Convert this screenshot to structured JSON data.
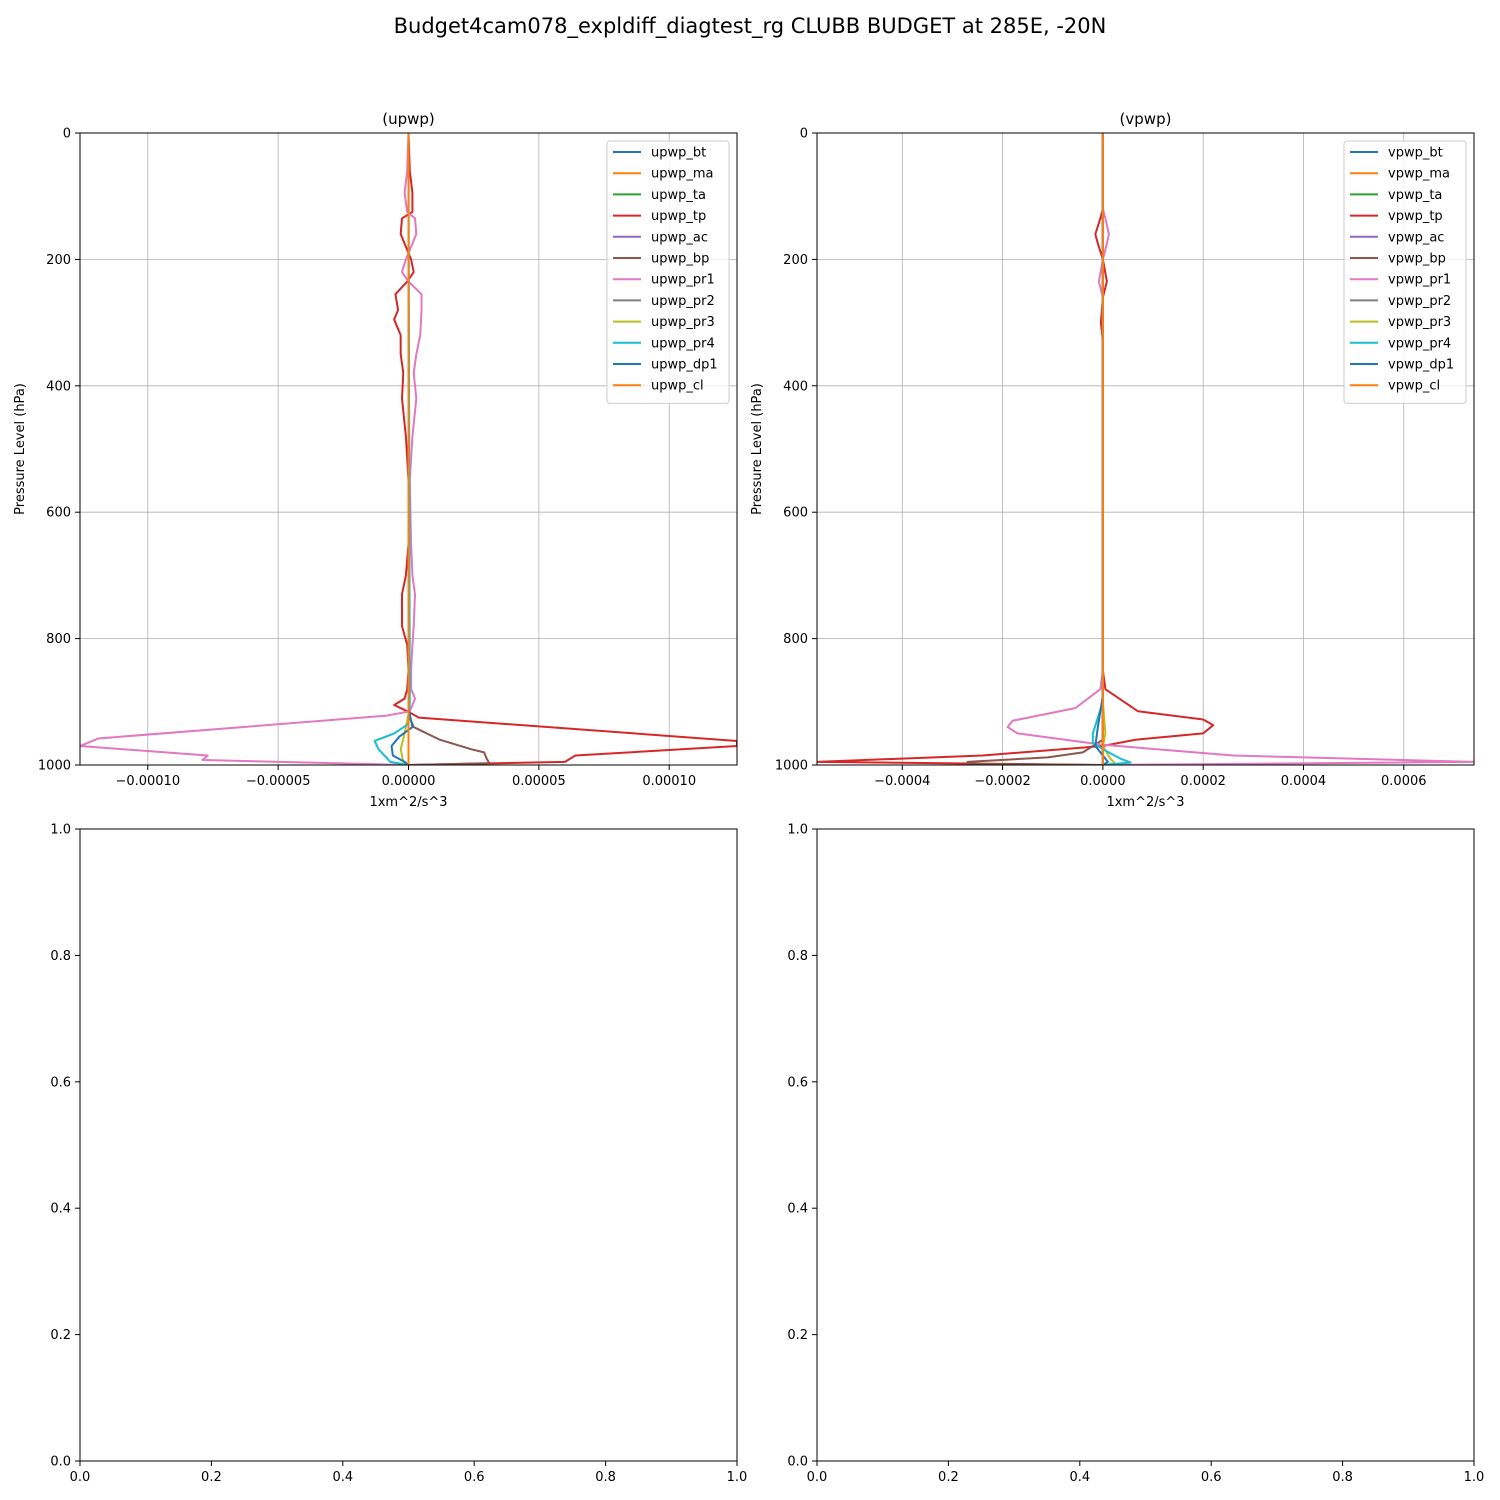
{
  "figure_title": "Budget4cam078_expldiff_diagtest_rg CLUBB BUDGET at 285E, -20N",
  "chart_data": [
    {
      "type": "line",
      "title": "(upwp)",
      "xlabel": "1xm^2/s^3",
      "ylabel": "Pressure Level (hPa)",
      "xlim": [
        -0.000126,
        0.000126
      ],
      "ylim": [
        1000,
        0
      ],
      "x_ticks": [
        -0.0001,
        -5e-05,
        0,
        5e-05,
        0.0001
      ],
      "x_tick_labels": [
        "−0.00010",
        "−0.00005",
        "0.00000",
        "0.00005",
        "0.00010"
      ],
      "y_ticks": [
        0,
        200,
        400,
        600,
        800,
        1000
      ],
      "y_tick_labels": [
        "0",
        "200",
        "400",
        "600",
        "800",
        "1000"
      ],
      "grid": true,
      "legend": "top-right",
      "series": [
        {
          "name": "upwp_bt",
          "color": "#1f77b4",
          "points": [
            [
              0,
              0
            ],
            [
              0,
              900
            ],
            [
              0,
              940
            ],
            [
              0,
              1000
            ]
          ]
        },
        {
          "name": "upwp_ma",
          "color": "#ff7f0e",
          "points": [
            [
              0,
              0
            ],
            [
              0,
              1000
            ]
          ]
        },
        {
          "name": "upwp_ta",
          "color": "#2ca02c",
          "points": [
            [
              0,
              0
            ],
            [
              0,
              1000
            ]
          ]
        },
        {
          "name": "upwp_tp",
          "color": "#d62728",
          "points": [
            [
              0,
              0
            ],
            [
              5e-07,
              60
            ],
            [
              1.5e-06,
              95
            ],
            [
              1.5e-06,
              125
            ],
            [
              -2.5e-06,
              135
            ],
            [
              -3e-06,
              160
            ],
            [
              -1e-06,
              180
            ],
            [
              1e-06,
              200
            ],
            [
              2e-06,
              220
            ],
            [
              -5e-07,
              235
            ],
            [
              -5e-06,
              255
            ],
            [
              -4e-06,
              280
            ],
            [
              -5.5e-06,
              295
            ],
            [
              -3e-06,
              320
            ],
            [
              -3e-06,
              350
            ],
            [
              -2e-06,
              380
            ],
            [
              -2.5e-06,
              420
            ],
            [
              -1e-06,
              480
            ],
            [
              0,
              550
            ],
            [
              0,
              650
            ],
            [
              -1e-06,
              700
            ],
            [
              -2.5e-06,
              730
            ],
            [
              -2.5e-06,
              780
            ],
            [
              -5e-07,
              810
            ],
            [
              0,
              850
            ],
            [
              -5e-07,
              880
            ],
            [
              -1.5e-06,
              895
            ],
            [
              -5.5e-06,
              905
            ],
            [
              0,
              916
            ],
            [
              4e-06,
              925
            ],
            [
              0.000126,
              962
            ],
            [
              0.000126,
              970
            ],
            [
              6.4e-05,
              985
            ],
            [
              6e-05,
              995
            ],
            [
              0,
              1000
            ]
          ]
        },
        {
          "name": "upwp_ac",
          "color": "#9467bd",
          "points": [
            [
              0,
              0
            ],
            [
              0,
              1000
            ]
          ]
        },
        {
          "name": "upwp_bp",
          "color": "#8c564b",
          "points": [
            [
              0,
              0
            ],
            [
              0,
              920
            ],
            [
              2e-06,
              940
            ],
            [
              1.2e-05,
              960
            ],
            [
              2.4e-05,
              975
            ],
            [
              2.9e-05,
              980
            ],
            [
              3e-05,
              990
            ],
            [
              3.1e-05,
              997
            ],
            [
              1e-06,
              1000
            ]
          ]
        },
        {
          "name": "upwp_pr1",
          "color": "#e377c2",
          "points": [
            [
              0,
              0
            ],
            [
              -5e-07,
              60
            ],
            [
              -1.5e-06,
              95
            ],
            [
              -5e-07,
              125
            ],
            [
              2.5e-06,
              135
            ],
            [
              3e-06,
              160
            ],
            [
              1e-06,
              180
            ],
            [
              -1e-06,
              200
            ],
            [
              -2.5e-06,
              220
            ],
            [
              0,
              235
            ],
            [
              5e-06,
              255
            ],
            [
              5e-06,
              280
            ],
            [
              4.5e-06,
              320
            ],
            [
              3e-06,
              350
            ],
            [
              2e-06,
              380
            ],
            [
              3e-06,
              420
            ],
            [
              1.5e-06,
              480
            ],
            [
              5e-07,
              550
            ],
            [
              1e-06,
              650
            ],
            [
              1.5e-06,
              700
            ],
            [
              2.5e-06,
              730
            ],
            [
              2e-06,
              780
            ],
            [
              1.5e-06,
              810
            ],
            [
              1e-06,
              850
            ],
            [
              1e-06,
              880
            ],
            [
              2.5e-06,
              895
            ],
            [
              5e-07,
              915
            ],
            [
              -8.5e-06,
              922
            ],
            [
              -0.000119,
              958
            ],
            [
              -0.000126,
              970
            ],
            [
              -7.7e-05,
              985
            ],
            [
              -7.9e-05,
              992
            ],
            [
              0,
              1000
            ]
          ]
        },
        {
          "name": "upwp_pr2",
          "color": "#7f7f7f",
          "points": [
            [
              0,
              0
            ],
            [
              0,
              1000
            ]
          ]
        },
        {
          "name": "upwp_pr3",
          "color": "#bcbd22",
          "points": [
            [
              0,
              0
            ],
            [
              0,
              920
            ],
            [
              -1.5e-06,
              950
            ],
            [
              -3e-06,
              975
            ],
            [
              -2.5e-06,
              985
            ],
            [
              -2e-06,
              995
            ],
            [
              0,
              1000
            ]
          ]
        },
        {
          "name": "upwp_pr4",
          "color": "#17becf",
          "points": [
            [
              0,
              0
            ],
            [
              5e-07,
              900
            ],
            [
              0,
              935
            ],
            [
              -5.5e-06,
              950
            ],
            [
              -1.3e-05,
              962
            ],
            [
              -1.15e-05,
              975
            ],
            [
              -7e-06,
              995
            ],
            [
              0,
              1000
            ]
          ]
        },
        {
          "name": "upwp_dp1",
          "color": "#1f77b4",
          "points": [
            [
              0,
              0
            ],
            [
              0,
              910
            ],
            [
              1.5e-06,
              940
            ],
            [
              -3.5e-06,
              955
            ],
            [
              -6.5e-06,
              970
            ],
            [
              -6e-06,
              985
            ],
            [
              -1.5e-06,
              995
            ],
            [
              0,
              1000
            ]
          ]
        },
        {
          "name": "upwp_cl",
          "color": "#ff7f0e",
          "points": [
            [
              0,
              0
            ],
            [
              0,
              1000
            ]
          ]
        }
      ]
    },
    {
      "type": "line",
      "title": "(vpwp)",
      "xlabel": "1xm^2/s^3",
      "ylabel": "Pressure Level (hPa)",
      "xlim": [
        -0.00057,
        0.00074
      ],
      "ylim": [
        1000,
        0
      ],
      "x_ticks": [
        -0.0004,
        -0.0002,
        0,
        0.0002,
        0.0004,
        0.0006
      ],
      "x_tick_labels": [
        "−0.0004",
        "−0.0002",
        "0.0000",
        "0.0002",
        "0.0004",
        "0.0006"
      ],
      "y_ticks": [
        0,
        200,
        400,
        600,
        800,
        1000
      ],
      "y_tick_labels": [
        "0",
        "200",
        "400",
        "600",
        "800",
        "1000"
      ],
      "grid": true,
      "legend": "top-right",
      "series": [
        {
          "name": "vpwp_bt",
          "color": "#1f77b4",
          "points": [
            [
              0,
              0
            ],
            [
              0,
              1000
            ]
          ]
        },
        {
          "name": "vpwp_ma",
          "color": "#ff7f0e",
          "points": [
            [
              0,
              0
            ],
            [
              0,
              1000
            ]
          ]
        },
        {
          "name": "vpwp_ta",
          "color": "#2ca02c",
          "points": [
            [
              0,
              0
            ],
            [
              0,
              1000
            ]
          ]
        },
        {
          "name": "vpwp_tp",
          "color": "#d62728",
          "points": [
            [
              0,
              0
            ],
            [
              0,
              120
            ],
            [
              -5e-06,
              135
            ],
            [
              -1.5e-05,
              160
            ],
            [
              -1e-05,
              175
            ],
            [
              0,
              200
            ],
            [
              8e-06,
              235
            ],
            [
              0,
              260
            ],
            [
              -4e-06,
              300
            ],
            [
              0,
              330
            ],
            [
              0,
              850
            ],
            [
              5e-06,
              880
            ],
            [
              7e-05,
              915
            ],
            [
              0.0002,
              928
            ],
            [
              0.00022,
              937
            ],
            [
              0.0002,
              950
            ],
            [
              6.5e-05,
              960
            ],
            [
              0,
              970
            ],
            [
              -0.00024,
              985
            ],
            [
              -0.00057,
              995
            ],
            [
              0,
              1000
            ]
          ]
        },
        {
          "name": "vpwp_ac",
          "color": "#9467bd",
          "points": [
            [
              0,
              0
            ],
            [
              0,
              1000
            ]
          ]
        },
        {
          "name": "vpwp_bp",
          "color": "#8c564b",
          "points": [
            [
              0,
              0
            ],
            [
              0,
              960
            ],
            [
              -4e-05,
              980
            ],
            [
              -0.00011,
              988
            ],
            [
              -0.00027,
              995
            ],
            [
              -0.00027,
              998
            ],
            [
              0,
              1000
            ]
          ]
        },
        {
          "name": "vpwp_pr1",
          "color": "#e377c2",
          "points": [
            [
              0,
              0
            ],
            [
              0,
              120
            ],
            [
              5e-06,
              135
            ],
            [
              1.2e-05,
              160
            ],
            [
              8e-06,
              175
            ],
            [
              0,
              200
            ],
            [
              -8e-06,
              235
            ],
            [
              0,
              260
            ],
            [
              0,
              850
            ],
            [
              -5e-06,
              880
            ],
            [
              -5.5e-05,
              910
            ],
            [
              -0.00018,
              930
            ],
            [
              -0.00019,
              940
            ],
            [
              -0.00017,
              950
            ],
            [
              0,
              968
            ],
            [
              0.00026,
              985
            ],
            [
              0.00074,
              995
            ],
            [
              0,
              1000
            ]
          ]
        },
        {
          "name": "vpwp_pr2",
          "color": "#7f7f7f",
          "points": [
            [
              0,
              0
            ],
            [
              0,
              1000
            ]
          ]
        },
        {
          "name": "vpwp_pr3",
          "color": "#bcbd22",
          "points": [
            [
              0,
              0
            ],
            [
              0,
              900
            ],
            [
              5e-06,
              950
            ],
            [
              0,
              970
            ],
            [
              1.5e-05,
              990
            ],
            [
              2.5e-05,
              998
            ],
            [
              0,
              1000
            ]
          ]
        },
        {
          "name": "vpwp_pr4",
          "color": "#17becf",
          "points": [
            [
              0,
              0
            ],
            [
              0,
              900
            ],
            [
              -2e-05,
              950
            ],
            [
              -2e-05,
              965
            ],
            [
              0,
              975
            ],
            [
              3.5e-05,
              990
            ],
            [
              5.5e-05,
              996
            ],
            [
              0,
              1000
            ]
          ]
        },
        {
          "name": "vpwp_dp1",
          "color": "#1f77b4",
          "points": [
            [
              0,
              0
            ],
            [
              0,
              890
            ],
            [
              -1e-05,
              940
            ],
            [
              -1.5e-05,
              970
            ],
            [
              0,
              985
            ],
            [
              1e-05,
              995
            ],
            [
              0,
              1000
            ]
          ]
        },
        {
          "name": "vpwp_cl",
          "color": "#ff7f0e",
          "points": [
            [
              0,
              0
            ],
            [
              0,
              1000
            ]
          ]
        }
      ]
    },
    {
      "type": "line",
      "title": "",
      "xlabel": "",
      "ylabel": "",
      "xlim": [
        0,
        1
      ],
      "ylim": [
        0,
        1
      ],
      "x_ticks": [
        0,
        0.2,
        0.4,
        0.6,
        0.8,
        1
      ],
      "x_tick_labels": [
        "0.0",
        "0.2",
        "0.4",
        "0.6",
        "0.8",
        "1.0"
      ],
      "y_ticks": [
        0,
        0.2,
        0.4,
        0.6,
        0.8,
        1
      ],
      "y_tick_labels": [
        "0.0",
        "0.2",
        "0.4",
        "0.6",
        "0.8",
        "1.0"
      ],
      "grid": false,
      "series": []
    },
    {
      "type": "line",
      "title": "",
      "xlabel": "",
      "ylabel": "",
      "xlim": [
        0,
        1
      ],
      "ylim": [
        0,
        1
      ],
      "x_ticks": [
        0,
        0.2,
        0.4,
        0.6,
        0.8,
        1
      ],
      "x_tick_labels": [
        "0.0",
        "0.2",
        "0.4",
        "0.6",
        "0.8",
        "1.0"
      ],
      "y_ticks": [
        0,
        0.2,
        0.4,
        0.6,
        0.8,
        1
      ],
      "y_tick_labels": [
        "0.0",
        "0.2",
        "0.4",
        "0.6",
        "0.8",
        "1.0"
      ],
      "grid": false,
      "series": []
    }
  ]
}
